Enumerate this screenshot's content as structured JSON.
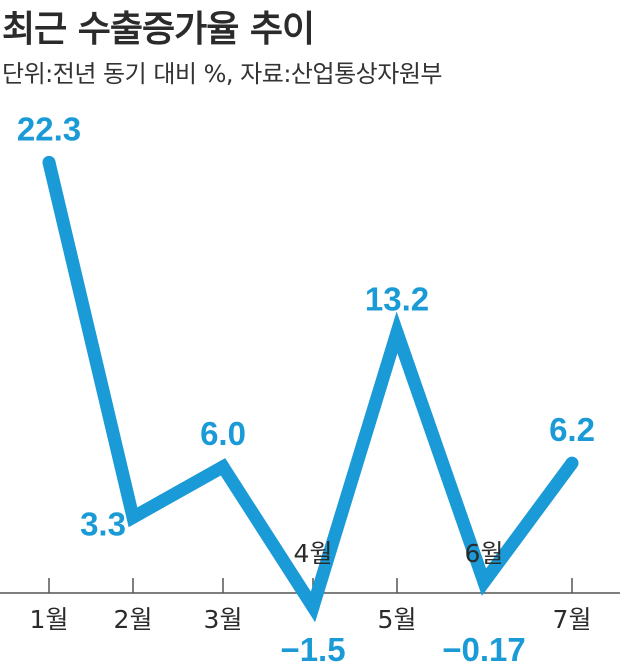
{
  "header": {
    "title": "최근 수출증가율 추이",
    "subtitle": "단위:전년 동기 대비 %, 자료:산업통상자원부"
  },
  "colors": {
    "line": "#1a9ad6",
    "text": "#2b2b2b",
    "axis": "#555555"
  },
  "chart_data": {
    "type": "line",
    "title": "최근 수출증가율 추이",
    "subtitle": "단위:전년 동기 대비 %, 자료:산업통상자원부",
    "categories": [
      "1월",
      "2월",
      "3월",
      "4월",
      "5월",
      "6월",
      "7월"
    ],
    "series": [
      {
        "values": [
          22.3,
          3.3,
          6.0,
          -1.5,
          13.2,
          -0.17,
          6.2
        ]
      }
    ],
    "data_labels": [
      "22.3",
      "3.3",
      "6.0",
      "−1.5",
      "13.2",
      "−0.17",
      "6.2"
    ],
    "ylim": [
      -2.2,
      23.5
    ],
    "grid": false,
    "legend": "none"
  }
}
